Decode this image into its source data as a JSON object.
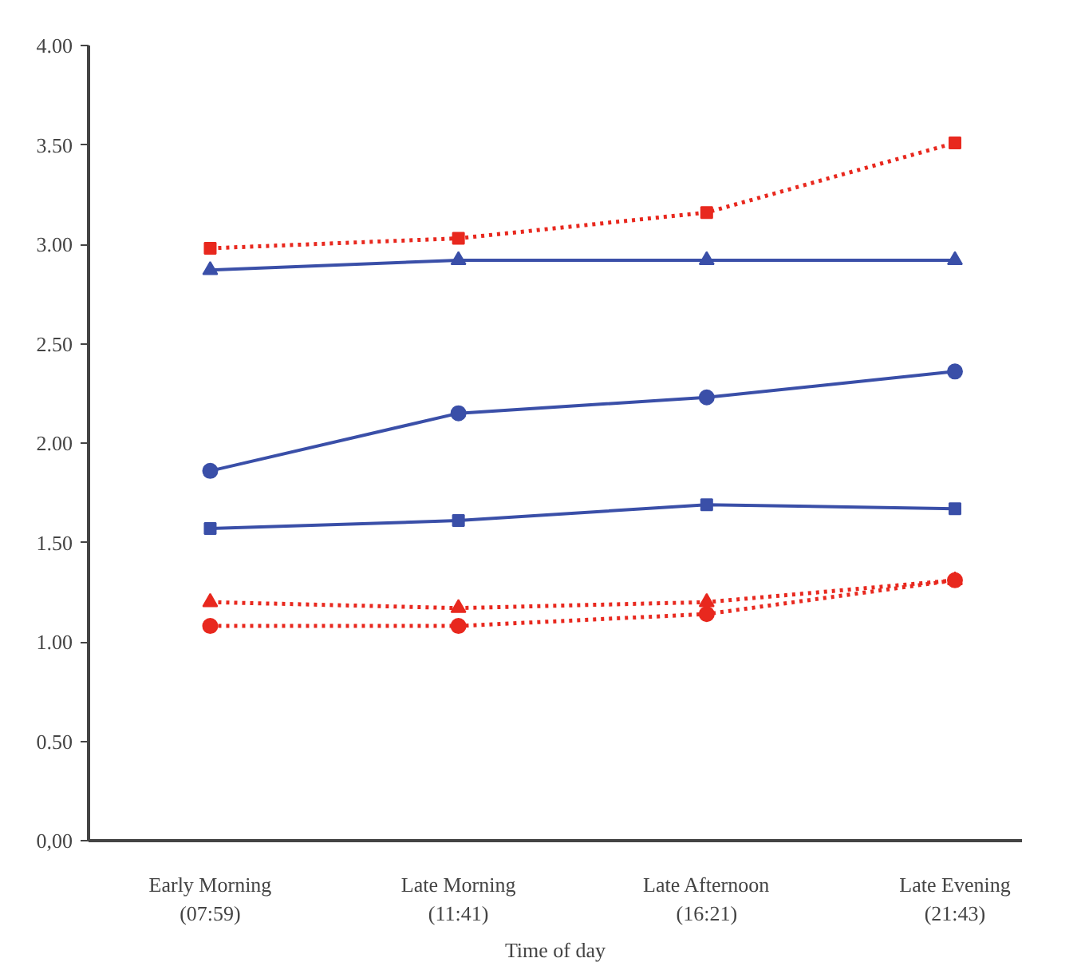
{
  "chart_data": {
    "type": "line",
    "xlabel": "Time of day",
    "categories": [
      "Early Morning\n(07:59)",
      "Late Morning\n(11:41)",
      "Late Afternoon\n(16:21)",
      "Late Evening\n(21:43)"
    ],
    "ylim": [
      0,
      4
    ],
    "yticks": [
      {
        "value": 0,
        "label": "0,00"
      },
      {
        "value": 0.5,
        "label": "0.50"
      },
      {
        "value": 1,
        "label": "1.00"
      },
      {
        "value": 1.5,
        "label": "1.50"
      },
      {
        "value": 2,
        "label": "2.00"
      },
      {
        "value": 2.5,
        "label": "2.50"
      },
      {
        "value": 3,
        "label": "3.00"
      },
      {
        "value": 3.5,
        "label": "3.50"
      },
      {
        "value": 4,
        "label": "4.00"
      }
    ],
    "grid": false,
    "series": [
      {
        "color": "#e8281e",
        "marker": "square",
        "line_style": "dotted",
        "values": [
          2.98,
          3.03,
          3.16,
          3.51
        ]
      },
      {
        "color": "#3a4fa8",
        "marker": "triangle",
        "line_style": "solid",
        "values": [
          2.87,
          2.92,
          2.92,
          2.92
        ]
      },
      {
        "color": "#3a4fa8",
        "marker": "circle",
        "line_style": "solid",
        "values": [
          1.86,
          2.15,
          2.23,
          2.36
        ]
      },
      {
        "color": "#3a4fa8",
        "marker": "square",
        "line_style": "solid",
        "values": [
          1.57,
          1.61,
          1.69,
          1.67
        ]
      },
      {
        "color": "#e8281e",
        "marker": "circle",
        "line_style": "dotted",
        "values": [
          1.08,
          1.08,
          1.14,
          1.31
        ]
      },
      {
        "color": "#e8281e",
        "marker": "triangle",
        "line_style": "dotted",
        "values": [
          1.2,
          1.17,
          1.2,
          1.31
        ]
      }
    ]
  }
}
